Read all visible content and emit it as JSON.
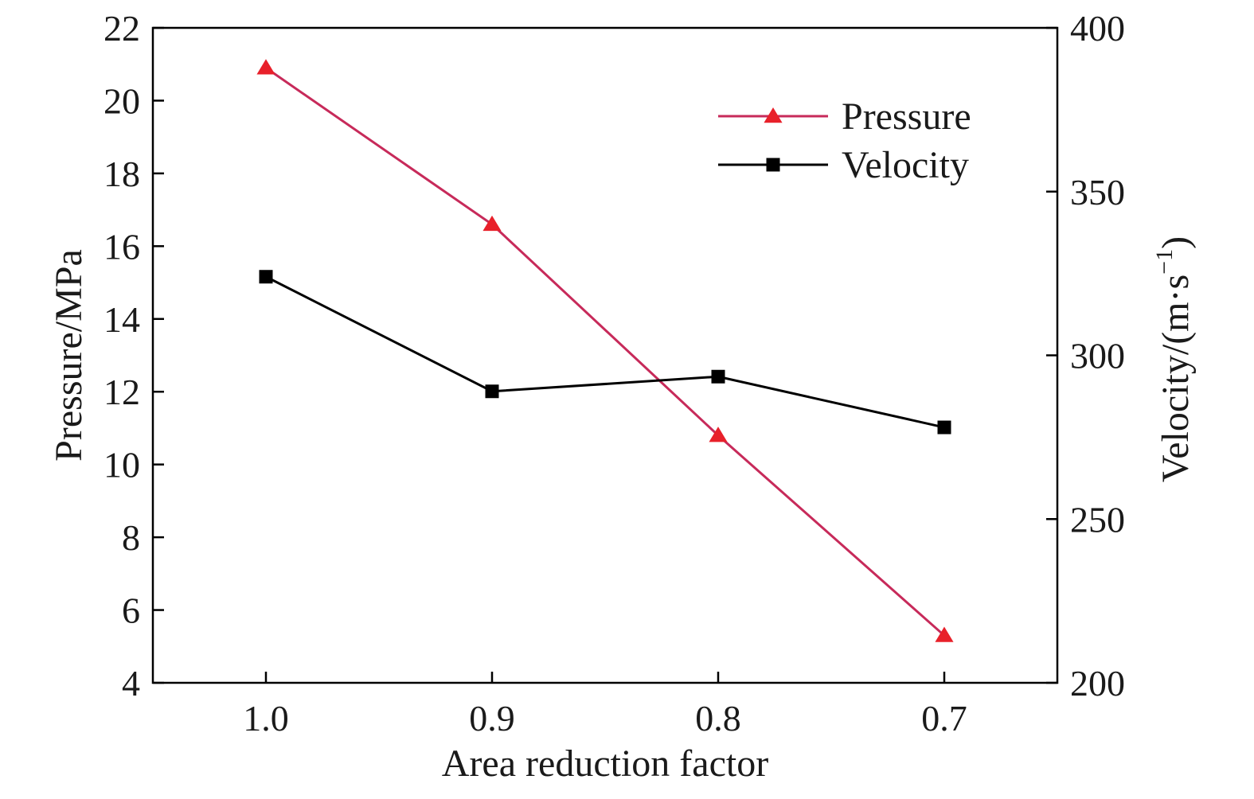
{
  "chart_data": {
    "type": "line",
    "title": "",
    "xlabel": "Area reduction factor",
    "ylabel_left": "Pressure/MPa",
    "ylabel_right": {
      "base": "Velocity/(m·s",
      "sup": "−1",
      "close": ")"
    },
    "categories": [
      "1.0",
      "0.9",
      "0.8",
      "0.7"
    ],
    "x": [
      1.0,
      0.9,
      0.8,
      0.7
    ],
    "xlim": [
      1.05,
      0.65
    ],
    "ylim_left": [
      4,
      22
    ],
    "ylim_right": [
      200,
      400
    ],
    "yticks_left": [
      "4",
      "6",
      "8",
      "10",
      "12",
      "14",
      "16",
      "18",
      "20",
      "22"
    ],
    "yticks_right": [
      "200",
      "250",
      "300",
      "350",
      "400"
    ],
    "grid": false,
    "legend_position": "top-right",
    "series": [
      {
        "name": "Pressure",
        "axis": "left",
        "marker": "triangle",
        "color": "#e8202a",
        "line_color": "#c72a5a",
        "values": [
          20.9,
          16.6,
          10.8,
          5.3
        ]
      },
      {
        "name": "Velocity",
        "axis": "right",
        "marker": "square",
        "color": "#000000",
        "line_color": "#000000",
        "values": [
          324,
          289,
          293.5,
          278
        ]
      }
    ]
  }
}
